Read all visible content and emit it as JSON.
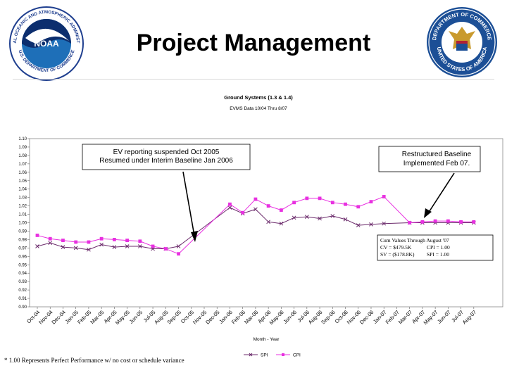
{
  "slide": {
    "title": "Project Management",
    "footnote": "* 1.00 Represents Perfect Performance w/ no cost or schedule variance",
    "noaa_logo_text": [
      "NATIONAL OCEANIC AND ATMOSPHERIC ADMINISTRATION",
      "U.S. DEPARTMENT OF COMMERCE",
      "NOAA"
    ],
    "doc_seal_text": [
      "DEPARTMENT OF COMMERCE",
      "UNITED STATES OF AMERICA"
    ]
  },
  "chart_data": {
    "type": "line",
    "title": "Ground Systems (1.3 & 1.4)",
    "subtitle": "EVMS Data 10/04 Thru 8/07",
    "xlabel": "Month - Year",
    "ylabel": "",
    "ylim": [
      0.9,
      1.1
    ],
    "y_ticks": [
      "0.90",
      "0.91",
      "0.92",
      "0.93",
      "0.94",
      "0.95",
      "0.96",
      "0.97",
      "0.98",
      "0.99",
      "1.00",
      "1.01",
      "1.02",
      "1.03",
      "1.04",
      "1.05",
      "1.06",
      "1.07",
      "1.08",
      "1.09",
      "1.10"
    ],
    "categories": [
      "Oct-04",
      "Nov-04",
      "Dec-04",
      "Jan-05",
      "Feb-05",
      "Mar-05",
      "Apr-05",
      "May-05",
      "Jun-05",
      "Jul-05",
      "Aug-05",
      "Sep-05",
      "Oct-05",
      "Nov-05",
      "Dec-05",
      "Jan-06",
      "Feb-06",
      "Mar-06",
      "Apr-06",
      "May-06",
      "Jun-06",
      "Jul-06",
      "Aug-06",
      "Sep-06",
      "Oct-06",
      "Nov-06",
      "Dec-06",
      "Jan-07",
      "Feb-07",
      "Mar-07",
      "Apr-07",
      "May-07",
      "Jun-07",
      "Jul-07",
      "Aug-07"
    ],
    "series": [
      {
        "name": "SPI",
        "color": "#6b2a6b",
        "marker": "x",
        "values": [
          0.972,
          0.976,
          0.971,
          0.97,
          0.968,
          0.974,
          0.971,
          0.972,
          0.972,
          0.969,
          0.969,
          0.972,
          null,
          null,
          null,
          1.018,
          1.011,
          1.016,
          1.001,
          0.999,
          1.006,
          1.007,
          1.005,
          1.008,
          1.004,
          0.997,
          0.998,
          0.999,
          null,
          1.0,
          1.0,
          1.0,
          1.0,
          1.0,
          1.0
        ]
      },
      {
        "name": "CPI",
        "color": "#e830e0",
        "marker": "square",
        "values": [
          0.985,
          0.981,
          0.979,
          0.977,
          0.977,
          0.981,
          0.98,
          0.979,
          0.978,
          0.972,
          0.969,
          0.963,
          null,
          null,
          null,
          1.022,
          1.012,
          1.028,
          1.02,
          1.015,
          1.024,
          1.029,
          1.029,
          1.024,
          1.022,
          1.019,
          1.025,
          1.031,
          null,
          1.0,
          1.001,
          1.002,
          1.002,
          1.001,
          1.001
        ]
      }
    ],
    "connector": {
      "from_index": 11,
      "to_index": 15
    },
    "legend_position": "bottom",
    "grid": false,
    "annotations": [
      {
        "lines": [
          "EV reporting suspended Oct 2005",
          "Resumed under Interim Baseline Jan 2006"
        ]
      },
      {
        "lines": [
          "Restructured Baseline",
          "Implemented Feb 07."
        ]
      }
    ],
    "values_box": {
      "title": "Cum Values Through August '07",
      "rows": [
        [
          "CV = $479.5K",
          "CPI = 1.00"
        ],
        [
          "SV = ($178.8K)",
          "SPI = 1.00"
        ]
      ]
    }
  }
}
